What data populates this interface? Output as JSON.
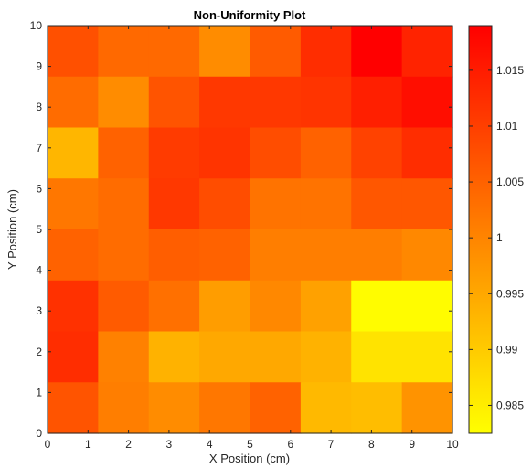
{
  "chart_data": {
    "type": "heatmap",
    "title": "Non-Uniformity Plot",
    "xlabel": "X Position (cm)",
    "ylabel": "Y Position (cm)",
    "xlim": [
      0,
      10
    ],
    "ylim": [
      0,
      10
    ],
    "xticks": [
      "0",
      "1",
      "2",
      "3",
      "4",
      "5",
      "6",
      "7",
      "8",
      "9",
      "10"
    ],
    "yticks": [
      "0",
      "1",
      "2",
      "3",
      "4",
      "5",
      "6",
      "7",
      "8",
      "9",
      "10"
    ],
    "grid_size": [
      9,
      9
    ],
    "colormap": "autumn (yellow to red)",
    "colorbar": {
      "range": [
        0.9825,
        1.019
      ],
      "ticks": [
        "0.985",
        "0.99",
        "0.995",
        "1",
        "1.005",
        "1.01",
        "1.015"
      ],
      "tick_values": [
        0.985,
        0.99,
        0.995,
        1.0,
        1.005,
        1.01,
        1.015
      ],
      "low_color": "#ffff00",
      "high_color": "#ff0000"
    },
    "rows_top_to_bottom": [
      [
        1.0075,
        1.004,
        1.004,
        0.999,
        1.006,
        1.0125,
        1.019,
        1.014
      ],
      [
        1.0035,
        0.999,
        1.007,
        1.011,
        1.011,
        1.0115,
        1.0145,
        1.017
      ],
      [
        0.993,
        1.005,
        1.0105,
        1.0115,
        1.008,
        1.005,
        1.0095,
        1.0125
      ],
      [
        1.002,
        1.0035,
        1.011,
        1.008,
        1.0025,
        1.0025,
        1.0065,
        1.0065
      ],
      [
        1.005,
        1.0035,
        1.0055,
        1.005,
        1.001,
        1.001,
        1.001,
        0.9995
      ],
      [
        1.012,
        1.006,
        1.003,
        0.9965,
        0.9995,
        0.996,
        0.983,
        0.983
      ],
      [
        1.0125,
        1.0005,
        0.9935,
        0.995,
        0.995,
        0.9935,
        0.9865,
        0.9865
      ],
      [
        1.007,
        1.001,
        0.999,
        1.002,
        1.005,
        0.9925,
        0.992,
        0.998
      ]
    ]
  }
}
